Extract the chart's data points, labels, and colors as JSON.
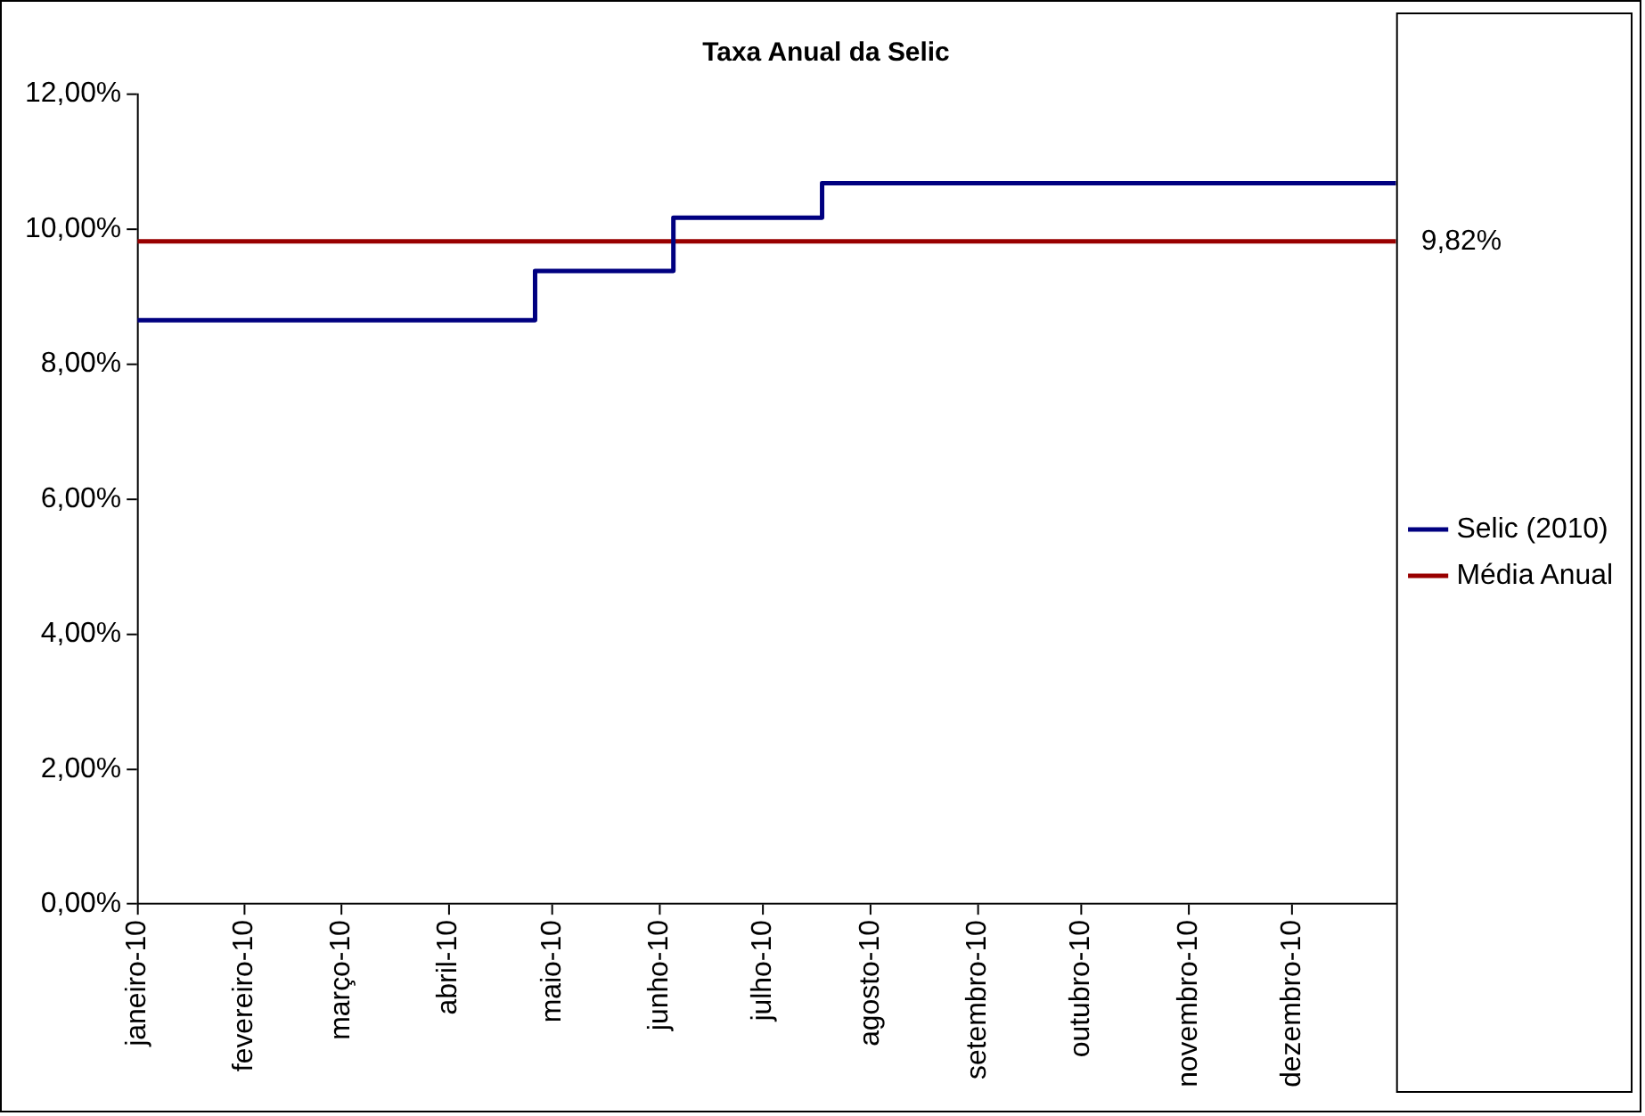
{
  "chart_data": {
    "type": "step",
    "title": "Taxa Anual da Selic",
    "x": [
      "2010-01-01",
      "2010-04-26",
      "2010-06-05",
      "2010-07-18",
      "2010-12-31"
    ],
    "series": [
      {
        "name": "Selic (2010)",
        "color": "#000080",
        "values": [
          8.65,
          9.38,
          10.17,
          10.68,
          10.68
        ]
      },
      {
        "name": "Média Anual",
        "type": "line",
        "color": "#990000",
        "x": [
          "2010-01-01",
          "2010-12-31"
        ],
        "values": [
          9.82,
          9.82
        ],
        "value_labels": [
          null,
          "9,82%"
        ]
      }
    ],
    "xlim": [
      "2010-01-01",
      "2010-12-31"
    ],
    "xticks": [
      {
        "value": "2010-01-01",
        "label": "janeiro-10"
      },
      {
        "value": "2010-02-01",
        "label": "fevereiro-10"
      },
      {
        "value": "2010-03-01",
        "label": "março-10"
      },
      {
        "value": "2010-04-01",
        "label": "abril-10"
      },
      {
        "value": "2010-05-01",
        "label": "maio-10"
      },
      {
        "value": "2010-06-01",
        "label": "junho-10"
      },
      {
        "value": "2010-07-01",
        "label": "julho-10"
      },
      {
        "value": "2010-08-01",
        "label": "agosto-10"
      },
      {
        "value": "2010-09-01",
        "label": "setembro-10"
      },
      {
        "value": "2010-10-01",
        "label": "outubro-10"
      },
      {
        "value": "2010-11-01",
        "label": "novembro-10"
      },
      {
        "value": "2010-12-01",
        "label": "dezembro-10"
      }
    ],
    "ylim": [
      0,
      12
    ],
    "yticks": [
      {
        "value": 0,
        "label": "0,00%"
      },
      {
        "value": 2,
        "label": "2,00%"
      },
      {
        "value": 4,
        "label": "4,00%"
      },
      {
        "value": 6,
        "label": "6,00%"
      },
      {
        "value": 8,
        "label": "8,00%"
      },
      {
        "value": 10,
        "label": "10,00%"
      },
      {
        "value": 12,
        "label": "12,00%"
      }
    ],
    "grid": false,
    "legend": "right",
    "marker": "none"
  }
}
